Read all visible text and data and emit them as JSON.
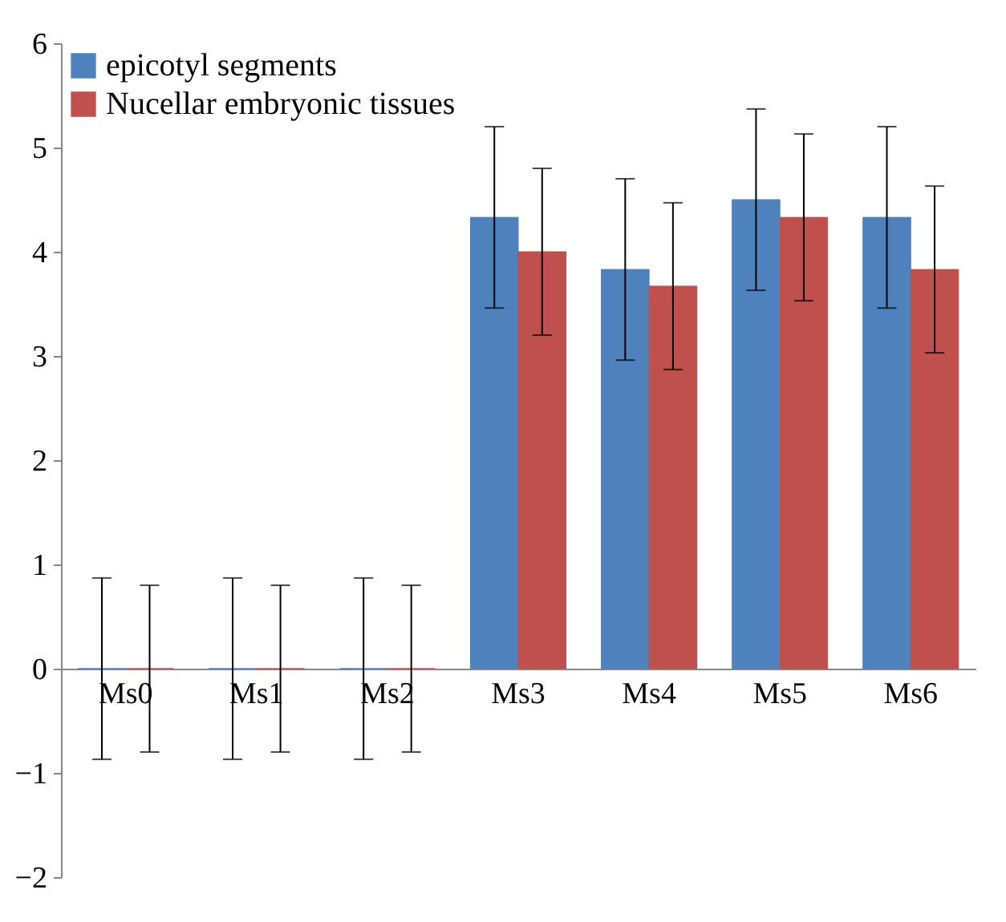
{
  "chart_data": {
    "type": "bar",
    "categories": [
      "Ms0",
      "Ms1",
      "Ms2",
      "Ms3",
      "Ms4",
      "Ms5",
      "Ms6"
    ],
    "series": [
      {
        "name": "epicotyl segments",
        "color": "#4f81bd",
        "values": [
          0,
          0,
          0,
          4.33,
          3.83,
          4.5,
          4.33
        ],
        "errors": [
          0.87,
          0.87,
          0.87,
          0.87,
          0.87,
          0.87,
          0.87
        ]
      },
      {
        "name": "Nucellar embryonic tissues",
        "color": "#c0504d",
        "values": [
          0,
          0,
          0,
          4.0,
          3.67,
          4.33,
          3.83
        ],
        "errors": [
          0.8,
          0.8,
          0.8,
          0.8,
          0.8,
          0.8,
          0.8
        ]
      }
    ],
    "ylim": [
      -2,
      6
    ],
    "yticks": [
      -2,
      -1,
      0,
      1,
      2,
      3,
      4,
      5,
      6
    ],
    "grid": false,
    "legend": "top left"
  }
}
